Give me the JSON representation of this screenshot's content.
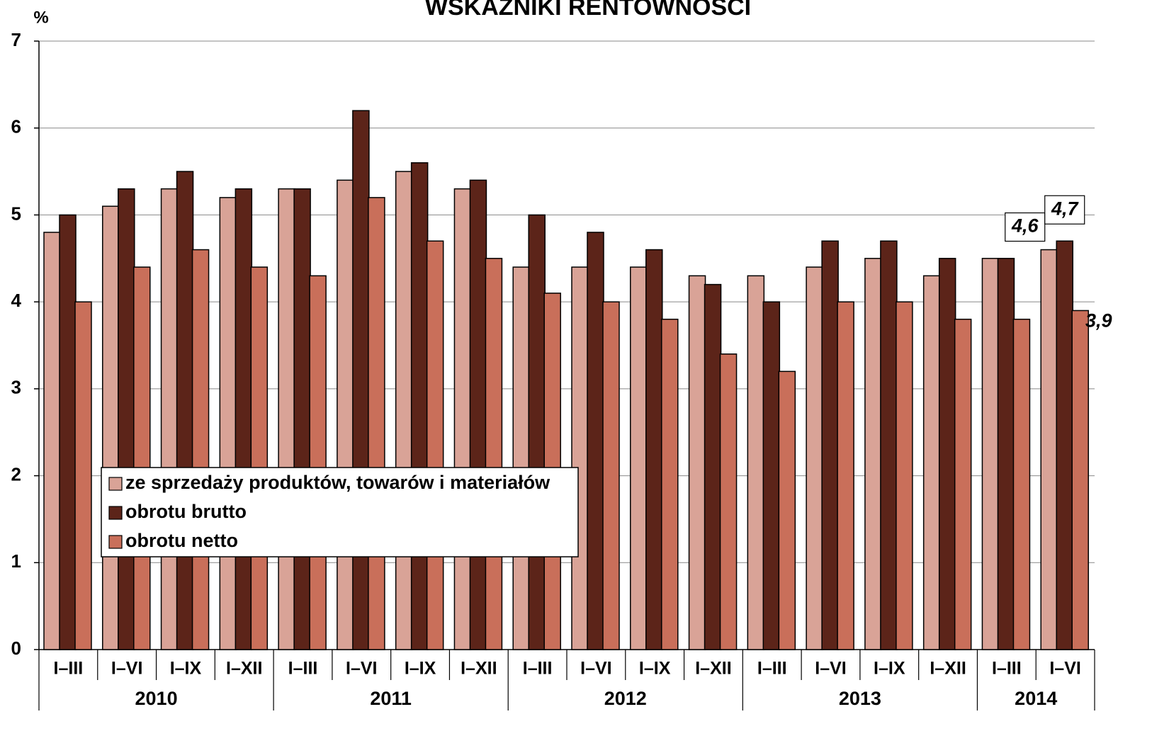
{
  "chart_data": {
    "type": "bar",
    "title": "WSKAŹNIKI RENTOWNOŚCI",
    "y_label": "%",
    "category_groups": [
      {
        "name": "2010",
        "categories": [
          "I–III",
          "I–VI",
          "I–IX",
          "I–XII"
        ]
      },
      {
        "name": "2011",
        "categories": [
          "I–III",
          "I–VI",
          "I–IX",
          "I–XII"
        ]
      },
      {
        "name": "2012",
        "categories": [
          "I–III",
          "I–VI",
          "I–IX",
          "I–XII"
        ]
      },
      {
        "name": "2013",
        "categories": [
          "I–III",
          "I–VI",
          "I–IX",
          "I–XII"
        ]
      },
      {
        "name": "2014",
        "categories": [
          "I–III",
          "I–VI"
        ]
      }
    ],
    "series": [
      {
        "name": "ze sprzedaży produktów, towarów i materiałów",
        "color": "#d9a397",
        "values": [
          4.8,
          5.1,
          5.3,
          5.2,
          5.3,
          5.4,
          5.5,
          5.3,
          4.4,
          4.4,
          4.4,
          4.3,
          4.3,
          4.4,
          4.5,
          4.3,
          4.5,
          4.6
        ],
        "value_labels": [
          null,
          null,
          null,
          null,
          null,
          null,
          null,
          null,
          null,
          null,
          null,
          null,
          null,
          null,
          null,
          null,
          null,
          "4,6"
        ]
      },
      {
        "name": "obrotu brutto",
        "color": "#5c2419",
        "values": [
          5.0,
          5.3,
          5.5,
          5.3,
          5.3,
          6.2,
          5.6,
          5.4,
          5.0,
          4.8,
          4.6,
          4.2,
          4.0,
          4.7,
          4.7,
          4.5,
          4.5,
          4.7
        ],
        "value_labels": [
          null,
          null,
          null,
          null,
          null,
          null,
          null,
          null,
          null,
          null,
          null,
          null,
          null,
          null,
          null,
          null,
          null,
          "4,7"
        ]
      },
      {
        "name": "obrotu netto",
        "color": "#c96f5a",
        "values": [
          4.0,
          4.4,
          4.6,
          4.4,
          4.3,
          5.2,
          4.7,
          4.5,
          4.1,
          4.0,
          3.8,
          3.4,
          3.2,
          4.0,
          4.0,
          3.8,
          3.8,
          3.9
        ],
        "value_labels": [
          null,
          null,
          null,
          null,
          null,
          null,
          null,
          null,
          null,
          null,
          null,
          null,
          null,
          null,
          null,
          null,
          null,
          "3,9"
        ]
      }
    ],
    "ylim": [
      0,
      7
    ],
    "yticks": [
      0,
      1,
      2,
      3,
      4,
      5,
      6,
      7
    ],
    "grid": true,
    "legend": "lower left"
  }
}
